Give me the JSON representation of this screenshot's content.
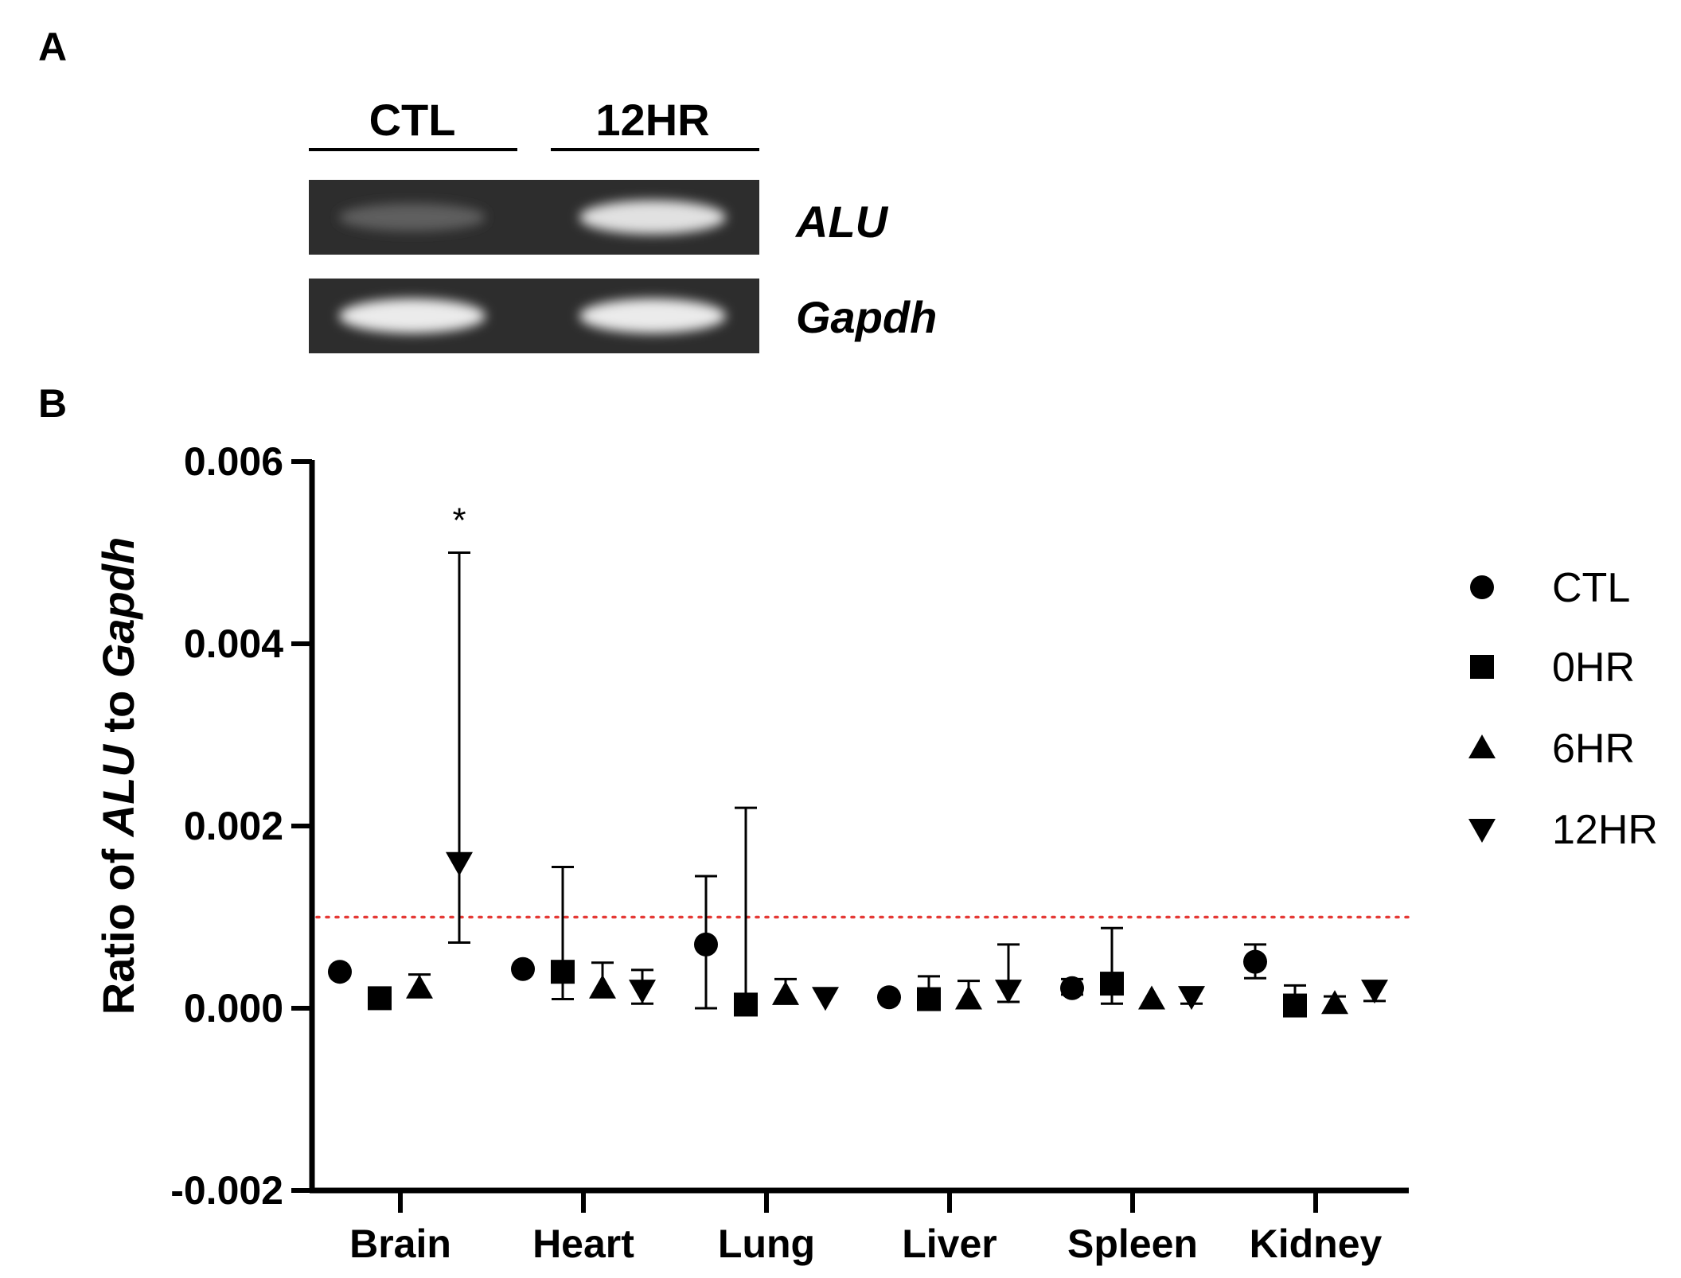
{
  "panel_a": {
    "label": "A",
    "groups": [
      "CTL",
      "12HR"
    ],
    "genes": [
      "ALU",
      "Gapdh"
    ],
    "band_intensity": [
      {
        "gene": "ALU",
        "CTL": 0.25,
        "12HR": 0.9
      },
      {
        "gene": "Gapdh",
        "CTL": 0.95,
        "12HR": 0.95
      }
    ]
  },
  "panel_b": {
    "label": "B",
    "ylabel_pre": "Ratio of ",
    "ylabel_gene1": "ALU",
    "ylabel_mid": " to ",
    "ylabel_gene2": "Gapdh",
    "significance": "*"
  },
  "chart_data": {
    "type": "scatter",
    "categories": [
      "Brain",
      "Heart",
      "Lung",
      "Liver",
      "Spleen",
      "Kidney"
    ],
    "ylim": [
      -0.002,
      0.006
    ],
    "yticks": [
      "0.006",
      "0.004",
      "0.002",
      "0.000",
      "-0.002"
    ],
    "ytick_values": [
      0.006,
      0.004,
      0.002,
      0.0,
      -0.002
    ],
    "reference_line": {
      "y": 0.001,
      "color": "#e53935",
      "style": "dotted"
    },
    "legend_position": "right",
    "series": [
      {
        "name": "CTL",
        "marker": "circle",
        "values": [
          0.0004,
          0.00043,
          0.0007,
          0.00012,
          0.00022,
          0.00051
        ],
        "err_low": [
          0.0004,
          0.00043,
          0.0,
          0.00012,
          0.00015,
          0.00033
        ],
        "err_high": [
          0.0004,
          0.00043,
          0.00145,
          0.00012,
          0.00032,
          0.0007
        ]
      },
      {
        "name": "0HR",
        "marker": "square",
        "values": [
          0.00011,
          0.0004,
          4e-05,
          0.0001,
          0.00027,
          3e-05
        ],
        "err_low": [
          0.00011,
          0.0001,
          4e-05,
          0.0001,
          5e-05,
          3e-05
        ],
        "err_high": [
          0.00011,
          0.00155,
          0.0022,
          0.00035,
          0.00088,
          0.00025
        ]
      },
      {
        "name": "6HR",
        "marker": "triangle-up",
        "values": [
          0.00022,
          0.00022,
          0.00015,
          0.0001,
          0.0001,
          5e-05
        ],
        "err_low": [
          0.00022,
          0.00022,
          0.00015,
          0.0001,
          0.0001,
          5e-05
        ],
        "err_high": [
          0.00037,
          0.0005,
          0.00032,
          0.0003,
          0.0001,
          0.00013
        ]
      },
      {
        "name": "12HR",
        "marker": "triangle-down",
        "values": [
          0.0016,
          0.0002,
          0.00012,
          0.0002,
          0.00013,
          0.0002
        ],
        "err_low": [
          0.00072,
          5e-05,
          0.00012,
          7e-05,
          5e-05,
          8e-05
        ],
        "err_high": [
          0.005,
          0.00042,
          0.00012,
          0.0007,
          0.00013,
          0.0002
        ]
      }
    ],
    "annotations": [
      {
        "category": "Brain",
        "series": "12HR",
        "text": "*"
      }
    ]
  }
}
